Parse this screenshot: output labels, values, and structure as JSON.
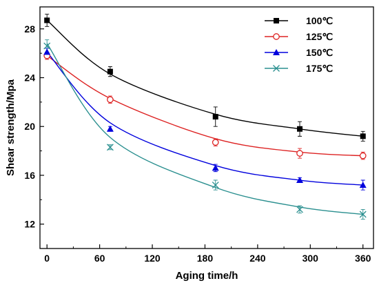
{
  "chart_data": {
    "type": "scatter",
    "xlabel": "Aging time/h",
    "ylabel": "Shear strength/Mpa",
    "xlim": [
      -8,
      372
    ],
    "ylim": [
      10,
      29.8
    ],
    "xticks": [
      0,
      60,
      120,
      180,
      240,
      300,
      360
    ],
    "yticks": [
      12,
      16,
      20,
      24,
      28
    ],
    "grid": false,
    "legend_position": "top-right",
    "series": [
      {
        "name": "100℃",
        "color": "#000000",
        "marker": "square-filled",
        "x": [
          0,
          72,
          192,
          288,
          360
        ],
        "y": [
          28.7,
          24.5,
          20.8,
          19.8,
          19.2
        ],
        "err": [
          0.5,
          0.4,
          0.8,
          0.6,
          0.4
        ],
        "fit": [
          28.7,
          24.3,
          21.0,
          19.8,
          19.2
        ]
      },
      {
        "name": "125℃",
        "color": "#dd2222",
        "marker": "circle-open",
        "x": [
          0,
          72,
          192,
          288,
          360
        ],
        "y": [
          25.8,
          22.2,
          18.7,
          17.8,
          17.6
        ],
        "err": [
          0.3,
          0.3,
          0.3,
          0.4,
          0.3
        ],
        "fit": [
          25.8,
          22.3,
          19.0,
          17.9,
          17.6
        ]
      },
      {
        "name": "150℃",
        "color": "#0000dd",
        "marker": "triangle-filled",
        "x": [
          0,
          72,
          192,
          288,
          360
        ],
        "y": [
          26.1,
          19.8,
          16.6,
          15.6,
          15.2
        ],
        "err": [
          0.3,
          0.2,
          0.3,
          0.2,
          0.4
        ],
        "fit": [
          26.1,
          20.3,
          16.8,
          15.6,
          15.2
        ]
      },
      {
        "name": "175℃",
        "color": "#2a8f8f",
        "marker": "x",
        "x": [
          0,
          72,
          192,
          288,
          360
        ],
        "y": [
          26.6,
          18.3,
          15.2,
          13.2,
          12.8
        ],
        "err": [
          0.5,
          0.2,
          0.4,
          0.3,
          0.4
        ],
        "fit": [
          26.8,
          19.1,
          15.0,
          13.4,
          12.8
        ]
      }
    ]
  }
}
